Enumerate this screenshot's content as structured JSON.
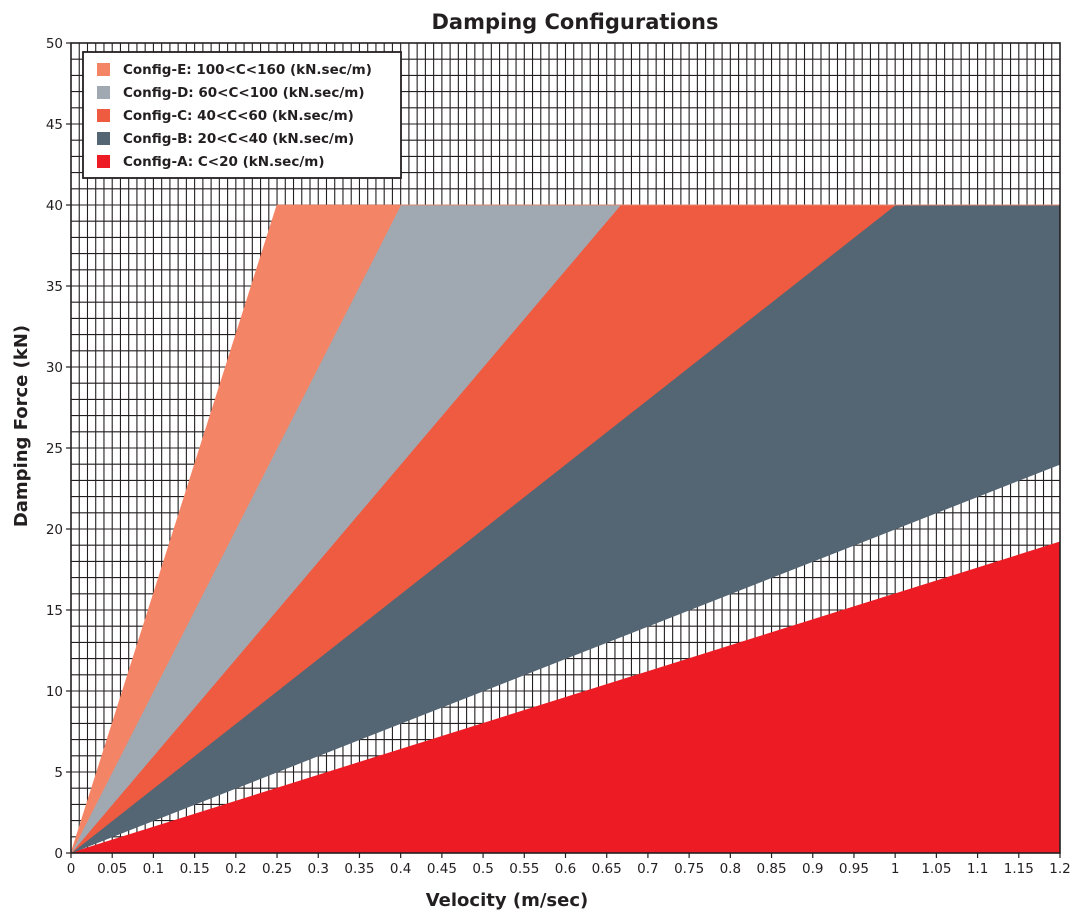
{
  "chart_data": {
    "type": "area",
    "title": "Damping Configurations",
    "xlabel": "Velocity (m/sec)",
    "ylabel": "Damping Force (kN)",
    "xlim": [
      0,
      1.2
    ],
    "ylim": [
      0,
      50
    ],
    "x_ticks": [
      "0",
      "0.05",
      "0.1",
      "0.15",
      "0.2",
      "0.25",
      "0.3",
      "0.35",
      "0.4",
      "0.45",
      "0.5",
      "0.55",
      "0.6",
      "0.65",
      "0.7",
      "0.75",
      "0.8",
      "0.85",
      "0.9",
      "0.95",
      "1",
      "1.05",
      "1.1",
      "1.15",
      "1.2"
    ],
    "y_ticks": [
      "0",
      "5",
      "10",
      "15",
      "20",
      "25",
      "30",
      "35",
      "40",
      "45",
      "50"
    ],
    "grid": true,
    "grid_region": "force above 40 kN and left of the shaded wedges",
    "force_cap": 40,
    "legend_position": "top-left",
    "series": [
      {
        "name": "Config-E: 100<C<160 (kN.sec/m)",
        "color": "#f48466",
        "c_min": 100,
        "c_max": 160
      },
      {
        "name": "Config-D: 60<C<100 (kN.sec/m)",
        "color": "#a0a9b2",
        "c_min": 60,
        "c_max": 100
      },
      {
        "name": "Config-C: 40<C<60 (kN.sec/m)",
        "color": "#ef5b40",
        "c_min": 40,
        "c_max": 60
      },
      {
        "name": "Config-B: 20<C<40 (kN.sec/m)",
        "color": "#546574",
        "c_min": 20,
        "c_max": 40
      },
      {
        "name": "Config-A: C<20 (kN.sec/m)",
        "color": "#ed1c24",
        "c_min": 0,
        "c_max": 16
      }
    ]
  }
}
